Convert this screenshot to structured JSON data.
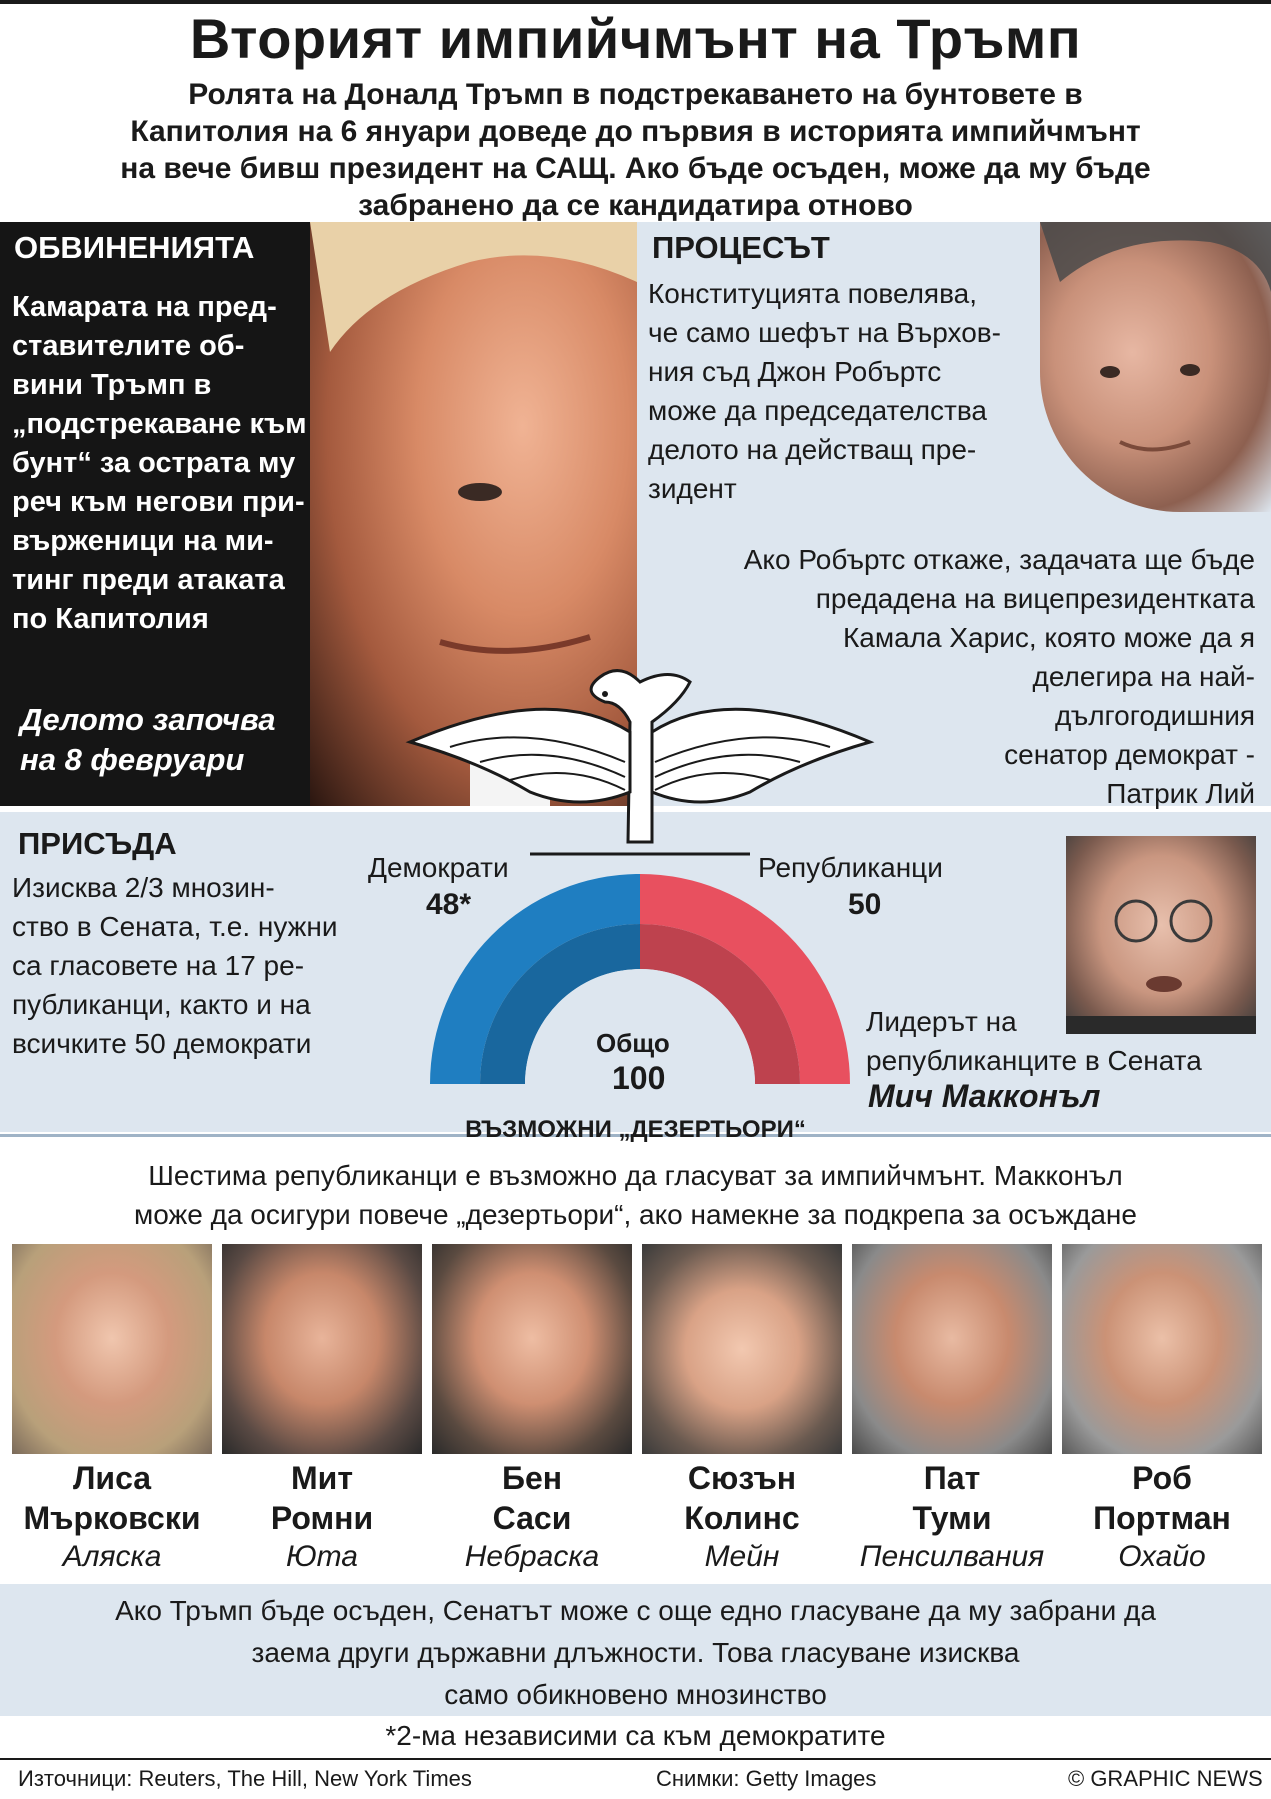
{
  "header": {
    "title": "Вторият импийчмънт на Тръмп",
    "subtitle_lines": [
      "Ролята на Доналд Тръмп в подстрекаването на бунтовете в",
      "Капитолия на 6 януари доведе до първия в историята импийчмънт",
      "на вече бивш президент на САЩ. Ако бъде осъден, може да му бъде",
      "забранено да се кандидатира отново"
    ]
  },
  "charges": {
    "heading": "ОБВИНЕНИЯТА",
    "lines": [
      "Камарата на пред-",
      "ставителите об-",
      "вини Тръмп в",
      "„подстрекаване към",
      "бунт“ за острата му",
      "реч към негови при-",
      "върженици на ми-",
      "тинг преди атаката",
      "по Капитолия"
    ],
    "trial_start_lines": [
      "Делото започва",
      "на 8 февруари"
    ]
  },
  "process": {
    "heading": "ПРОЦЕСЪТ",
    "lines1": [
      "Конституцията повелява,",
      "че само шефът на Върхов-",
      "ния съд Джон Робъртс",
      "може да председателства",
      "делото на действащ пре-",
      "зидент"
    ],
    "lines2": [
      "Ако Робъртс откаже, задачата ще бъде",
      "предадена на вицепрезидентката",
      "Камала Харис, която може да я",
      "делегира на най-",
      "дългогодишния",
      "сенатор демократ -",
      "Патрик Лий"
    ]
  },
  "verdict": {
    "heading": "ПРИСЪДА",
    "lines": [
      "Изисква 2/3 мнозин-",
      "ство в Сената, т.е. нужни",
      "са гласовете на 17 ре-",
      "публиканци, както и на",
      "всичките 50 демократи"
    ]
  },
  "chart_data": {
    "type": "pie",
    "title": "",
    "series": [
      {
        "name": "Демократи",
        "value": 48,
        "value_label": "48*",
        "color": "#1f7ec1"
      },
      {
        "name": "Републиканци",
        "value": 50,
        "value_label": "50",
        "color": "#e8505f"
      }
    ],
    "total_label": "Общо",
    "total_value": "100"
  },
  "leader": {
    "caption_lines": [
      "Лидерът на",
      "републиканците в Сената"
    ],
    "name": "Мич Макконъл"
  },
  "defectors": {
    "heading": "ВЪЗМОЖНИ „ДЕЗЕРТЬОРИ“",
    "intro_lines": [
      "Шестима републиканци е възможно да гласуват за импийчмънт. Макконъл",
      "може да осигури повече „дезертьори“, ако намекне за подкрепа за осъждане"
    ],
    "senators": [
      {
        "first": "Лиса",
        "last": "Мърковски",
        "state": "Аляска"
      },
      {
        "first": "Мит",
        "last": "Ромни",
        "state": "Юта"
      },
      {
        "first": "Бен",
        "last": "Саси",
        "state": "Небраска"
      },
      {
        "first": "Сюзън",
        "last": "Колинс",
        "state": "Мейн"
      },
      {
        "first": "Пат",
        "last": "Туми",
        "state": "Пенсилвания"
      },
      {
        "first": "Роб",
        "last": "Портман",
        "state": "Охайо"
      }
    ]
  },
  "footer": {
    "conviction_lines": [
      "Ако Тръмп бъде осъден, Сенатът може с още едно гласуване да му забрани да",
      "заема други държавни длъжности. Това гласуване изисква",
      "само обикновено мнозинство"
    ],
    "note": "*2-ма независими са към демократите",
    "sources": "Източници: Reuters, The Hill, New York Times",
    "photos": "Снимки: Getty Images",
    "copyright": "© GRAPHIC NEWS"
  }
}
